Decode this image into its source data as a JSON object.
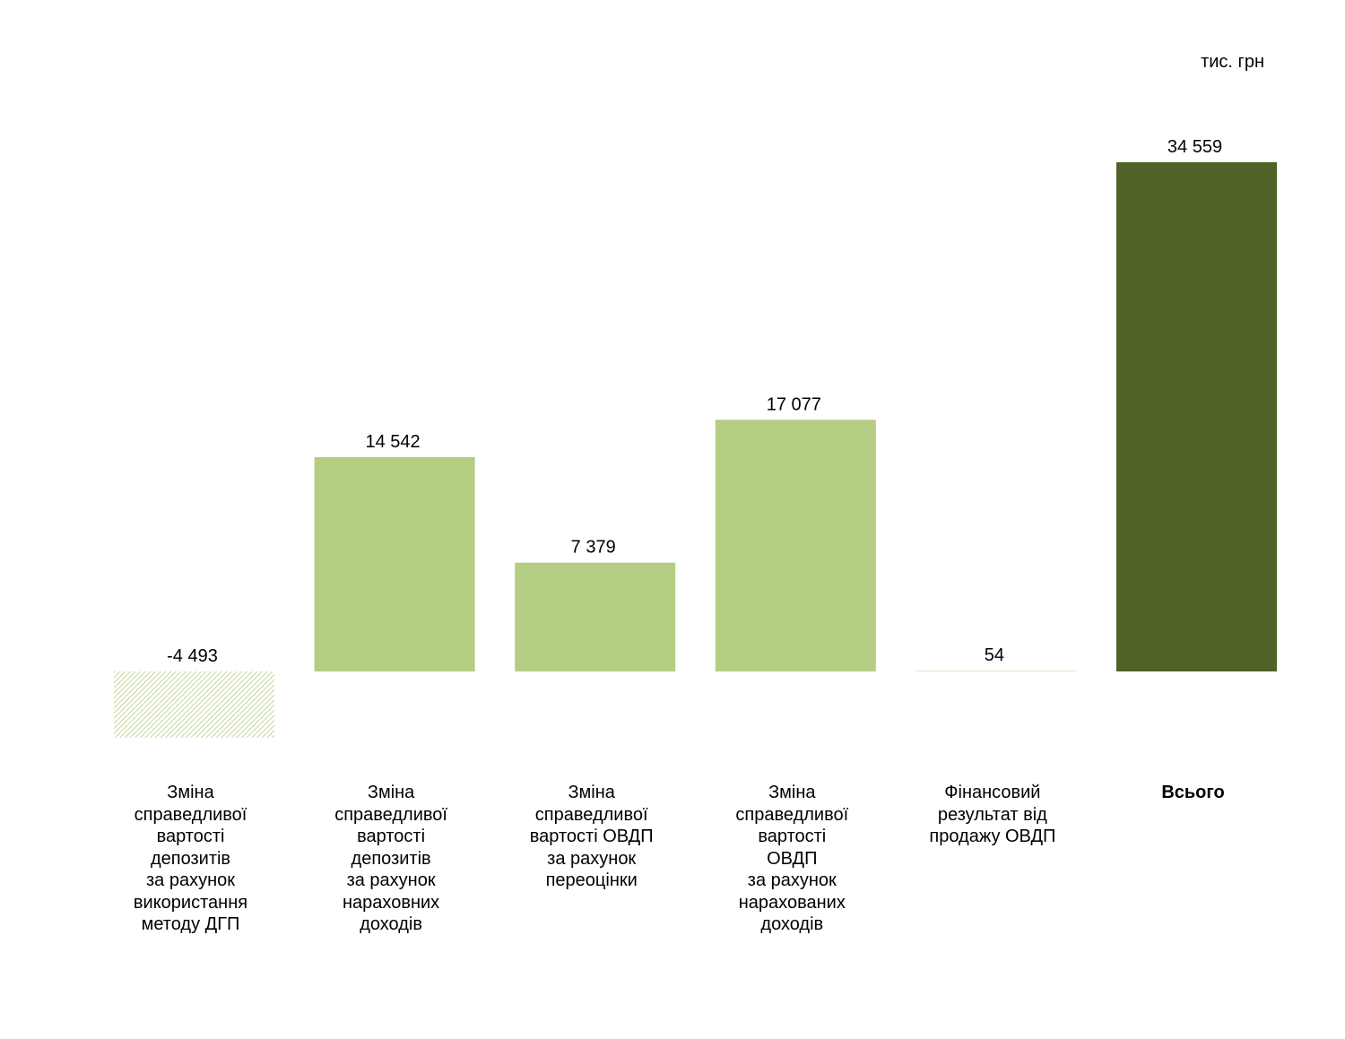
{
  "chart_data": {
    "type": "bar",
    "unit_label": "тис. грн",
    "categories": [
      "Зміна\nсправедливої\nвартості\nдепозитів\nза рахунок\nвикористання\nметоду ДГП",
      "Зміна\nсправедливої\nвартості\nдепозитів\nза рахунок\nнараховних\nдоходів",
      "Зміна\nсправедливої\nвартості ОВДП\nза рахунок\nпереоцінки",
      "Зміна\nсправедливої\nвартості\nОВДП\nза рахунок\nнарахованих\nдоходів",
      "Фінансовий\nрезультат від\nпродажу ОВДП",
      "Всього"
    ],
    "values": [
      -4493,
      14542,
      7379,
      17077,
      54,
      34559
    ],
    "value_labels": [
      "-4 493",
      "14 542",
      "7 379",
      "17 077",
      "54",
      "34 559"
    ],
    "bar_styles": [
      "hatched",
      "solid",
      "solid",
      "solid",
      "solid",
      "total"
    ],
    "colors": {
      "light": "#b5cc83",
      "total": "#4f6228",
      "hatch": "#b5cc83"
    },
    "ylim": [
      -4493,
      34559
    ],
    "grid": false,
    "legend": "none"
  }
}
